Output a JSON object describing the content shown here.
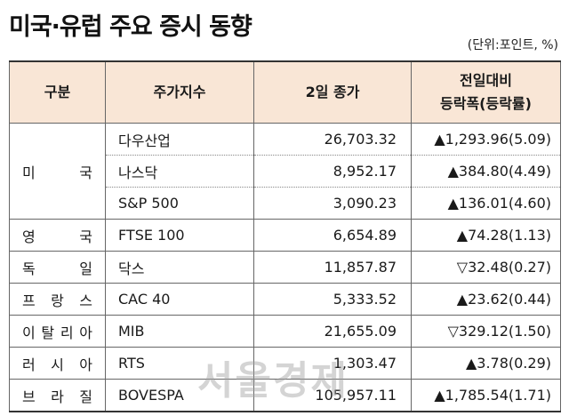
{
  "title": "미국·유럽 주요 증시 동향",
  "unit": "(단위:포인트, %)",
  "headers": {
    "region": "구분",
    "index": "주가지수",
    "close": "2일 종가",
    "change_line1": "전일대비",
    "change_line2": "등락폭(등락률)"
  },
  "rows": [
    {
      "region": "미 국",
      "index": "다우산업",
      "close": "26,703.32",
      "change": "▲1,293.96(5.09)"
    },
    {
      "index": "나스닥",
      "close": "8,952.17",
      "change": "▲384.80(4.49)"
    },
    {
      "index": "S&P 500",
      "close": "3,090.23",
      "change": "▲136.01(4.60)"
    },
    {
      "region": "영 국",
      "index": "FTSE 100",
      "close": "6,654.89",
      "change": "▲74.28(1.13)"
    },
    {
      "region": "독 일",
      "index": "닥스",
      "close": "11,857.87",
      "change": "▽32.48(0.27)"
    },
    {
      "region": "프랑스",
      "index": "CAC 40",
      "close": "5,333.52",
      "change": "▲23.62(0.44)"
    },
    {
      "region": "이탈리아",
      "index": "MIB",
      "close": "21,655.09",
      "change": "▽329.12(1.50)"
    },
    {
      "region": "러시아",
      "index": "RTS",
      "close": "1,303.47",
      "change": "▲3.78(0.29)"
    },
    {
      "region": "브라질",
      "index": "BOVESPA",
      "close": "105,957.11",
      "change": "▲1,785.54(1.71)"
    }
  ],
  "watermark": "서울경제"
}
